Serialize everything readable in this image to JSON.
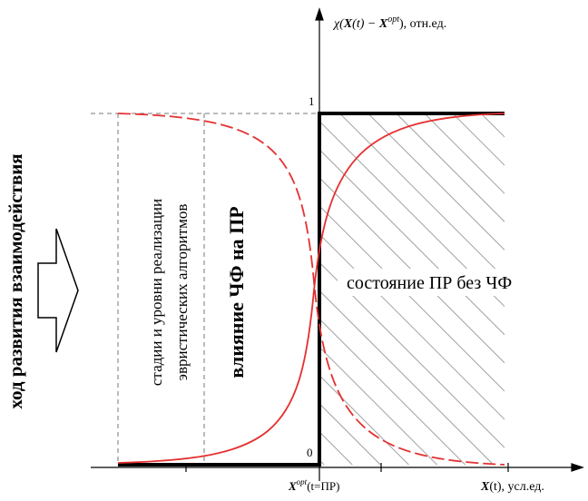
{
  "y_axis_label": {
    "symbol": "χ(",
    "var": "X",
    "arg": "(t) − ",
    "var2": "X",
    "sup": "opt",
    "tail": "), отн.ед."
  },
  "y_mark_top": "1",
  "y_mark_bottom": "0",
  "x_axis_label": {
    "var": "X",
    "tail": "(t), усл.ед."
  },
  "x_mark": {
    "var": "X",
    "sup": "opt",
    "tail": "(t=ПР)"
  },
  "side_label": "ход развития взаимодействия",
  "stages_label": [
    "стадии и уровни реализации",
    "эвристических алгоритмов"
  ],
  "influence_label": "влияние ЧФ на ПР",
  "state_label": "состояние ПР без ЧФ"
}
